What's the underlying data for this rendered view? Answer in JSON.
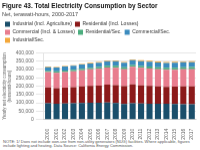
{
  "chart_data": {
    "type": "bar",
    "stacked": true,
    "title": "Figure 43. Total Electricity Consumption by Sector",
    "subtitle": "Net, terawatt-hours, 2000-2017",
    "ylabel": "Yearly net electricity consumption\n(terawatt-hours)",
    "footnote": "NOTE: 1/ Does not include own-use from non-utility generators (NUG) facilities. Where applicable, figures include lighting and heating. Data Source: California Energy Commission.",
    "categories": [
      "2000",
      "2001",
      "2002",
      "2003",
      "2004",
      "2005",
      "2006",
      "2007",
      "2008",
      "2009",
      "2010",
      "2011",
      "2012",
      "2013",
      "2014",
      "2015",
      "2016",
      "2017"
    ],
    "series": [
      {
        "name": "Industrial (Incl. Agriculture)",
        "color": "#1B4F6B",
        "values": [
          98000,
          95000,
          96000,
          97000,
          99000,
          101000,
          100000,
          102000,
          99000,
          93000,
          97000,
          96000,
          95000,
          95000,
          94000,
          93000,
          92000,
          92000
        ]
      },
      {
        "name": "Residential (Incl. Losses)",
        "color": "#8B1A1A",
        "values": [
          95000,
          93000,
          95000,
          97000,
          99000,
          101000,
          103000,
          107000,
          108000,
          107000,
          114000,
          109000,
          107000,
          103000,
          102000,
          104000,
          106000,
          107000
        ]
      },
      {
        "name": "Commercial (Incl. & Losses)",
        "color": "#E87D8E",
        "values": [
          91000,
          92000,
          94000,
          95000,
          97000,
          99000,
          101000,
          103000,
          104000,
          102000,
          105000,
          105000,
          104000,
          103000,
          102000,
          102000,
          103000,
          103000
        ]
      },
      {
        "name": "Residential/Sec.",
        "color": "#4BAD7E",
        "values": [
          8000,
          8500,
          8800,
          9100,
          9500,
          9900,
          10200,
          10700,
          11000,
          10900,
          11400,
          11600,
          11800,
          11900,
          12000,
          12100,
          12200,
          12300
        ]
      },
      {
        "name": "Commercial/Sec.",
        "color": "#3B8BBE",
        "values": [
          22000,
          23000,
          23500,
          24000,
          24800,
          25500,
          26200,
          27200,
          27600,
          27200,
          28200,
          28600,
          29000,
          29200,
          29400,
          29600,
          29800,
          30000
        ]
      },
      {
        "name": "Industrial/Sec.",
        "color": "#F4A83A",
        "values": [
          3500,
          3700,
          3900,
          4000,
          4200,
          4500,
          4600,
          4900,
          5000,
          4900,
          5100,
          5200,
          5300,
          5400,
          5500,
          5600,
          5700,
          5800
        ]
      }
    ],
    "ylim": [
      0,
      400000
    ],
    "yticks": [
      0,
      {
        "value": 50000,
        "label": "50,000"
      },
      {
        "value": 100000,
        "label": "100,000"
      },
      {
        "value": 150000,
        "label": "150,000"
      },
      {
        "value": 200000,
        "label": "200,000"
      },
      {
        "value": 250000,
        "label": "250,000"
      },
      {
        "value": 300000,
        "label": "300,000"
      },
      {
        "value": 350000,
        "label": "350,000"
      },
      {
        "value": 400000,
        "label": "400,000"
      }
    ],
    "grid": true,
    "legend": "top"
  }
}
